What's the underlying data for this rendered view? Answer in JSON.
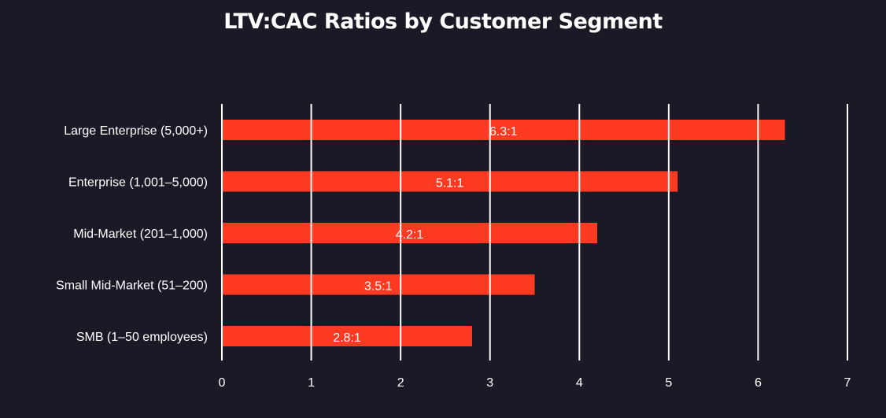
{
  "chart_data": {
    "type": "bar",
    "orientation": "horizontal",
    "title": "LTV:CAC Ratios by Customer Segment",
    "categories": [
      "Large Enterprise (5,000+)",
      "Enterprise (1,001–5,000)",
      "Mid-Market (201–1,000)",
      "Small Mid-Market (51–200)",
      "SMB (1–50 employees)"
    ],
    "values": [
      6.3,
      5.1,
      4.2,
      3.5,
      2.8
    ],
    "data_labels": [
      "6.3:1",
      "5.1:1",
      "4.2:1",
      "3.5:1",
      "2.8:1"
    ],
    "xlabel": "",
    "ylabel": "",
    "xlim": [
      0,
      7
    ],
    "xticks": [
      "0",
      "1",
      "2",
      "3",
      "4",
      "5",
      "6",
      "7"
    ],
    "grid": "vertical",
    "legend": "none"
  },
  "colors": {
    "background": "#191a25",
    "bar": "#ff3a22",
    "grid": "#ffffff",
    "text": "#ffffff"
  }
}
